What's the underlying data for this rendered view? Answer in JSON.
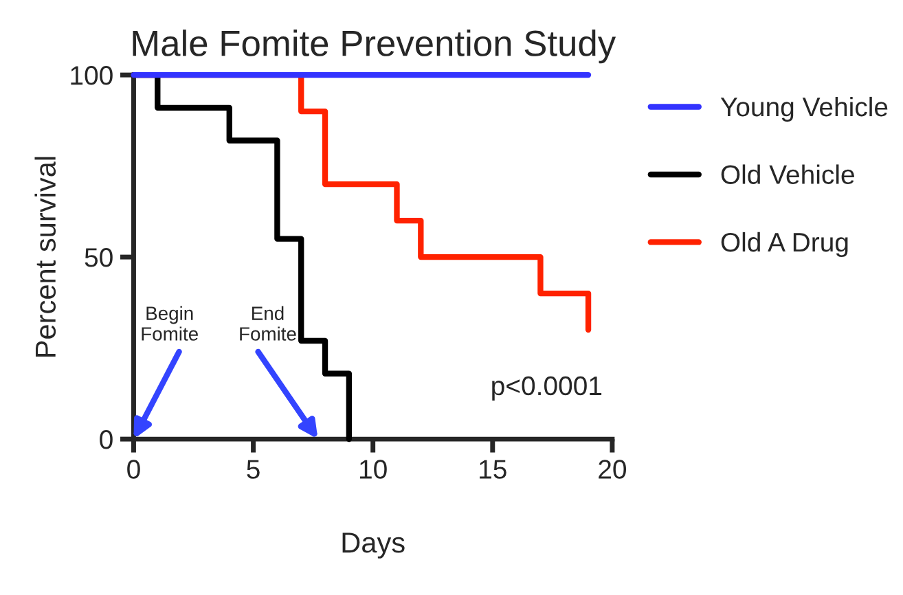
{
  "chart_data": {
    "type": "step",
    "title": "Male Fomite Prevention Study",
    "xlabel": "Days",
    "ylabel": "Percent survival",
    "series": [
      {
        "name": "Young Vehicle",
        "color": "#3333ff",
        "x": [
          0,
          19
        ],
        "values": [
          100,
          100
        ]
      },
      {
        "name": "Old Vehicle",
        "color": "#000000",
        "x": [
          0,
          1,
          4,
          6,
          7,
          8,
          9
        ],
        "values": [
          100,
          91,
          82,
          55,
          27,
          18,
          0
        ]
      },
      {
        "name": "Old A Drug",
        "color": "#ff2200",
        "x": [
          0,
          7,
          8,
          11,
          12,
          17,
          19
        ],
        "values": [
          100,
          90,
          70,
          60,
          50,
          40,
          30
        ]
      }
    ],
    "xlim": [
      0,
      20
    ],
    "xticks": [
      0,
      5,
      10,
      15,
      20
    ],
    "ylim": [
      0,
      100
    ],
    "yticks": [
      0,
      50,
      100
    ],
    "annotations": [
      "Begin\nFomite",
      "End\nFomite",
      "p<0.0001"
    ],
    "legend": "right",
    "grid": false,
    "marker": "none",
    "line_style": "solid"
  }
}
